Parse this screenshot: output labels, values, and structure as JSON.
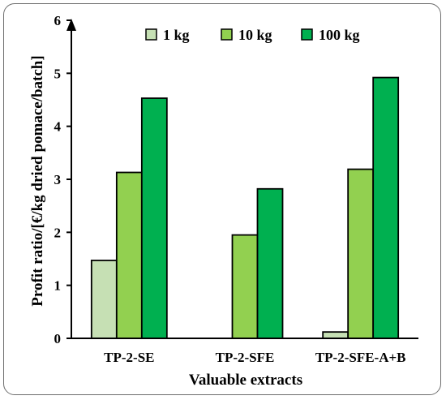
{
  "chart_data": {
    "type": "bar",
    "title": "",
    "xlabel": "Valuable extracts",
    "ylabel": "Profit ratio/[€/kg dried pomace/batch]",
    "categories": [
      "TP-2-SE",
      "TP-2-SFE",
      "TP-2-SFE-A+B"
    ],
    "series": [
      {
        "name": "1 kg",
        "color": "#c6e0b4",
        "values": [
          1.47,
          0,
          0.12
        ]
      },
      {
        "name": "10 kg",
        "color": "#92d050",
        "values": [
          3.13,
          1.95,
          3.19
        ]
      },
      {
        "name": "100 kg",
        "color": "#00b050",
        "values": [
          4.53,
          2.82,
          4.92
        ]
      }
    ],
    "ylim": [
      0,
      6
    ],
    "yticks": [
      "0",
      "1",
      "2",
      "3",
      "4",
      "5",
      "6"
    ],
    "grid": false,
    "legend": "top"
  }
}
